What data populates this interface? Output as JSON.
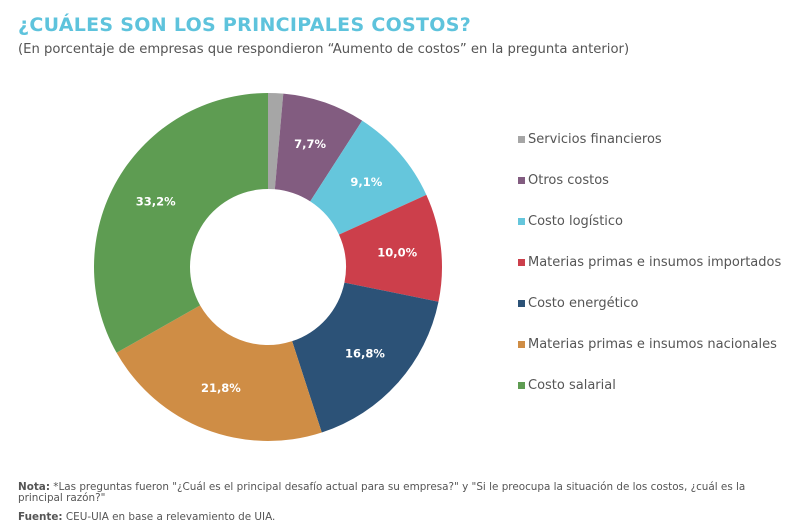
{
  "header": {
    "title": "¿CUÁLES SON LOS PRINCIPALES COSTOS?",
    "subtitle": "(En porcentaje de empresas que respondieron “Aumento de costos” en la pregunta anterior)"
  },
  "chart_data": {
    "type": "pie",
    "donut": true,
    "title": "¿CUÁLES SON LOS PRINCIPALES COSTOS?",
    "subtitle": "(En porcentaje de empresas que respondieron “Aumento de costos” en la pregunta anterior)",
    "legend_position": "right",
    "unit": "%",
    "slices": [
      {
        "name": "Servicios financieros",
        "value": 1.4,
        "label": "",
        "color": "#a6a6a6"
      },
      {
        "name": "Otros costos",
        "value": 7.7,
        "label": "7,7%",
        "color": "#825c80"
      },
      {
        "name": "Costo logístico",
        "value": 9.1,
        "label": "9,1%",
        "color": "#65c6dc"
      },
      {
        "name": "Materias primas e insumos importados",
        "value": 10.0,
        "label": "10,0%",
        "color": "#cc3f4b"
      },
      {
        "name": "Costo energético",
        "value": 16.8,
        "label": "16,8%",
        "color": "#2c5277"
      },
      {
        "name": "Materias primas e insumos nacionales",
        "value": 21.8,
        "label": "21,8%",
        "color": "#cf8d45"
      },
      {
        "name": "Costo salarial",
        "value": 33.2,
        "label": "33,2%",
        "color": "#5e9c52"
      }
    ]
  },
  "footer": {
    "note_label": "Nota:",
    "note_text": " *Las preguntas fueron \"¿Cuál es el principal desafío actual para su empresa?\" y \"Si le preocupa la situación de los costos, ¿cuál es la principal razón?\"",
    "source_label": "Fuente:",
    "source_text": " CEU-UIA en base a relevamiento de UIA."
  }
}
